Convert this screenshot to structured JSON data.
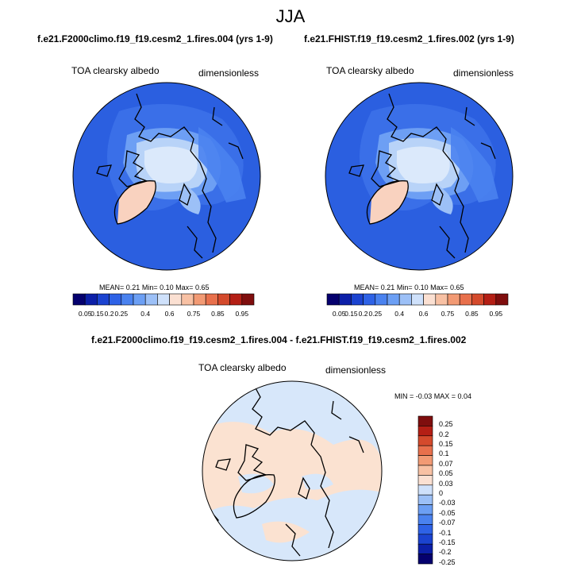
{
  "title": "JJA",
  "colors": {
    "ramp": [
      "#05006e",
      "#0c1fa8",
      "#1b43d0",
      "#2e62e6",
      "#4a82ef",
      "#6c9ff4",
      "#9cc0f7",
      "#cfe1fb",
      "#fbe0d2",
      "#f8c1a4",
      "#f29a74",
      "#e8704c",
      "#d44a2c",
      "#b41f15",
      "#7f0e0e"
    ],
    "diff_ramp": [
      "#05006e",
      "#0c1fa8",
      "#1b43d0",
      "#2e62e6",
      "#4a82ef",
      "#6c9ff4",
      "#9cc0f7",
      "#cfe1fb",
      "#fbe0d2",
      "#f8c1a4",
      "#f29a74",
      "#e8704c",
      "#d44a2c",
      "#b41f15",
      "#7f0e0e"
    ],
    "ocean": "#2a5fe2",
    "ice": "#dbe9fb",
    "greenland": "#f9d2bf",
    "diff_bg": "#d7e7fa",
    "diff_pos": "#fbe2d1"
  },
  "panels": [
    {
      "title": "f.e21.F2000climo.f19_f19.cesm2_1.fires.004 (yrs 1-9)",
      "var_name": "TOA clearsky albedo",
      "units": "dimensionless",
      "mean_label": "MEAN=",
      "mean": "0.21",
      "min_label": "Min=",
      "min": "0.10",
      "max_label": "Max=",
      "max": "0.65"
    },
    {
      "title": "f.e21.FHIST.f19_f19.cesm2_1.fires.002 (yrs 1-9)",
      "var_name": "TOA clearsky albedo",
      "units": "dimensionless",
      "mean_label": "MEAN=",
      "mean": "0.21",
      "min_label": "Min=",
      "min": "0.10",
      "max_label": "Max=",
      "max": "0.65"
    }
  ],
  "colorbar_ticks": [
    "0.05",
    "0.15",
    "0.2",
    "0.25",
    "0.4",
    "0.6",
    "0.75",
    "0.85",
    "0.95"
  ],
  "diff": {
    "title": "f.e21.F2000climo.f19_f19.cesm2_1.fires.004 - f.e21.FHIST.f19_f19.cesm2_1.fires.002",
    "var_name": "TOA clearsky albedo",
    "units": "dimensionless",
    "minmax_text": "MIN = -0.03 MAX =  0.04",
    "legend_labels": [
      "0.25",
      "0.2",
      "0.15",
      "0.1",
      "0.07",
      "0.05",
      "0.03",
      "0",
      "-0.03",
      "-0.05",
      "-0.07",
      "-0.1",
      "-0.15",
      "-0.2",
      "-0.25"
    ]
  }
}
